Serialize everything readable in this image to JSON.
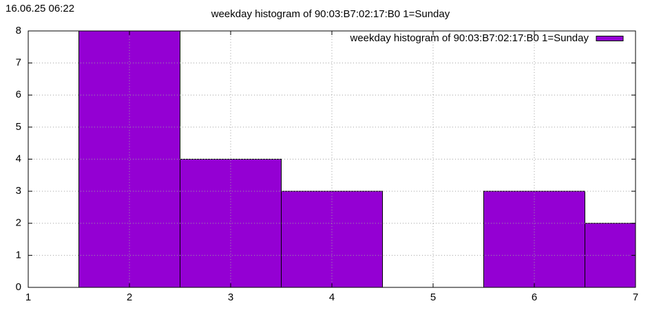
{
  "timestamp": "16.06.25 06:22",
  "chart_data": {
    "type": "bar",
    "title": "weekday histogram of 90:03:B7:02:17:B0 1=Sunday",
    "x": [
      2,
      3,
      4,
      6,
      7
    ],
    "series": [
      {
        "name": "weekday histogram of 90:03:B7:02:17:B0 1=Sunday",
        "color": "#9400d3",
        "values": [
          8,
          4,
          3,
          3,
          2
        ]
      }
    ],
    "xlim": [
      1,
      7
    ],
    "xticks": [
      1,
      2,
      3,
      4,
      5,
      6,
      7
    ],
    "ylim": [
      0,
      8
    ],
    "yticks": [
      0,
      1,
      2,
      3,
      4,
      5,
      6,
      7,
      8
    ],
    "grid": true,
    "legend": "top-right"
  }
}
